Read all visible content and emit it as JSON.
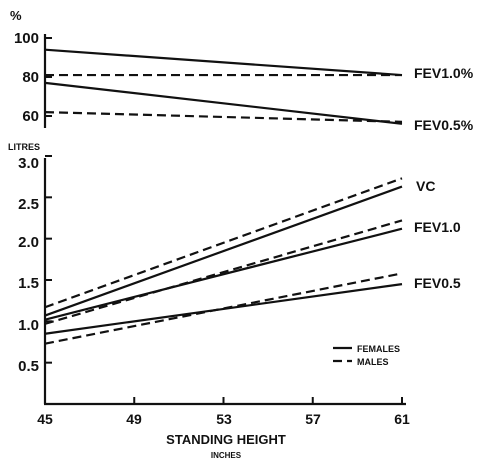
{
  "chart_data": [
    {
      "type": "line",
      "ylabel": "%",
      "ylim": [
        50,
        100
      ],
      "xlim": [
        45,
        61
      ],
      "y_ticks": [
        "100",
        "80",
        "60"
      ],
      "series": [
        {
          "name": "FEV1.0%",
          "sex": "FEMALES",
          "style": "solid",
          "x": [
            45,
            61
          ],
          "values": [
            94,
            81
          ]
        },
        {
          "name": "FEV1.0%",
          "sex": "MALES",
          "style": "dashed",
          "x": [
            45,
            61
          ],
          "values": [
            81,
            81
          ]
        },
        {
          "name": "FEV0.5%",
          "sex": "FEMALES",
          "style": "solid",
          "x": [
            45,
            61
          ],
          "values": [
            77,
            56
          ]
        },
        {
          "name": "FEV0.5%",
          "sex": "MALES",
          "style": "dashed",
          "x": [
            45,
            61
          ],
          "values": [
            62,
            57
          ]
        }
      ],
      "labels": {
        "fev10": "FEV1.0%",
        "fev05": "FEV0.5%"
      }
    },
    {
      "type": "line",
      "ylabel": "LITRES",
      "xlabel": "STANDING HEIGHT",
      "xlabel_unit": "INCHES",
      "ylim": [
        0,
        3.0
      ],
      "xlim": [
        45,
        61
      ],
      "x_ticks": [
        "45",
        "49",
        "53",
        "57",
        "61"
      ],
      "y_ticks": [
        "3.0",
        "2.5",
        "2.0",
        "1.5",
        "1.0",
        "0.5"
      ],
      "series": [
        {
          "name": "VC",
          "sex": "FEMALES",
          "style": "solid",
          "x": [
            45,
            61
          ],
          "values": [
            1.07,
            2.63
          ]
        },
        {
          "name": "VC",
          "sex": "MALES",
          "style": "dashed",
          "x": [
            45,
            61
          ],
          "values": [
            1.17,
            2.73
          ]
        },
        {
          "name": "FEV1.0",
          "sex": "FEMALES",
          "style": "solid",
          "x": [
            45,
            61
          ],
          "values": [
            1.02,
            2.12
          ]
        },
        {
          "name": "FEV1.0",
          "sex": "MALES",
          "style": "dashed",
          "x": [
            45,
            61
          ],
          "values": [
            0.97,
            2.22
          ]
        },
        {
          "name": "FEV0.5",
          "sex": "FEMALES",
          "style": "solid",
          "x": [
            45,
            61
          ],
          "values": [
            0.85,
            1.45
          ]
        },
        {
          "name": "FEV0.5",
          "sex": "MALES",
          "style": "dashed",
          "x": [
            45,
            61
          ],
          "values": [
            0.73,
            1.58
          ]
        }
      ],
      "labels": {
        "vc": "VC",
        "fev10": "FEV1.0",
        "fev05": "FEV0.5"
      },
      "legend": {
        "placement": "lower-right",
        "females": "FEMALES",
        "males": "MALES"
      }
    }
  ]
}
